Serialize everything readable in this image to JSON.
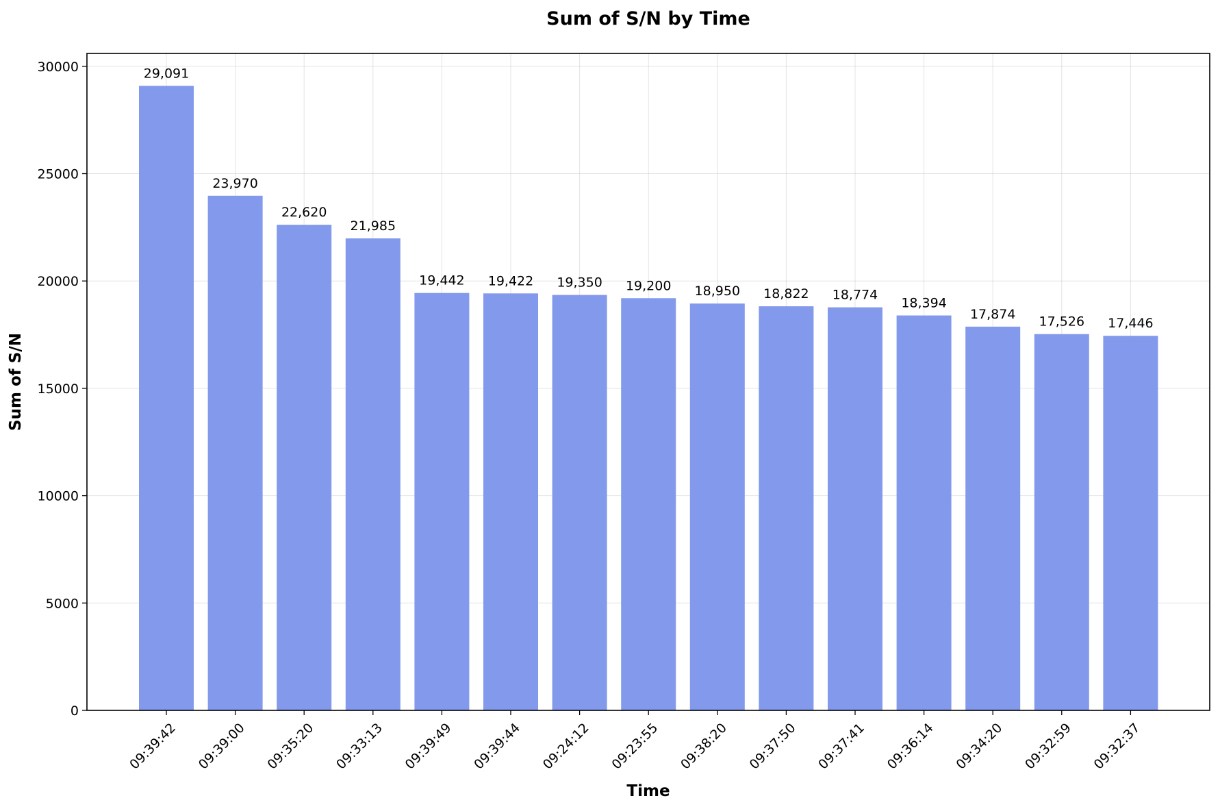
{
  "chart_data": {
    "type": "bar",
    "title": "Sum of S/N by Time",
    "xlabel": "Time",
    "ylabel": "Sum of S/N",
    "categories": [
      "09:39:42",
      "09:39:00",
      "09:35:20",
      "09:33:13",
      "09:39:49",
      "09:39:44",
      "09:24:12",
      "09:23:55",
      "09:38:20",
      "09:37:50",
      "09:37:41",
      "09:36:14",
      "09:34:20",
      "09:32:59",
      "09:32:37"
    ],
    "values": [
      29091,
      23970,
      22620,
      21985,
      19442,
      19422,
      19350,
      19200,
      18950,
      18822,
      18774,
      18394,
      17874,
      17526,
      17446
    ],
    "data_labels": [
      "29,091",
      "23,970",
      "22,620",
      "21,985",
      "19,442",
      "19,422",
      "19,350",
      "19,200",
      "18,950",
      "18,822",
      "18,774",
      "18,394",
      "17,874",
      "17,526",
      "17,446"
    ],
    "ylim": [
      0,
      30600
    ],
    "yticks": [
      0,
      5000,
      10000,
      15000,
      20000,
      25000,
      30000
    ],
    "ytick_labels": [
      "0",
      "5000",
      "10000",
      "15000",
      "20000",
      "25000",
      "30000"
    ],
    "grid": true,
    "bar_color": "#8399ec"
  }
}
